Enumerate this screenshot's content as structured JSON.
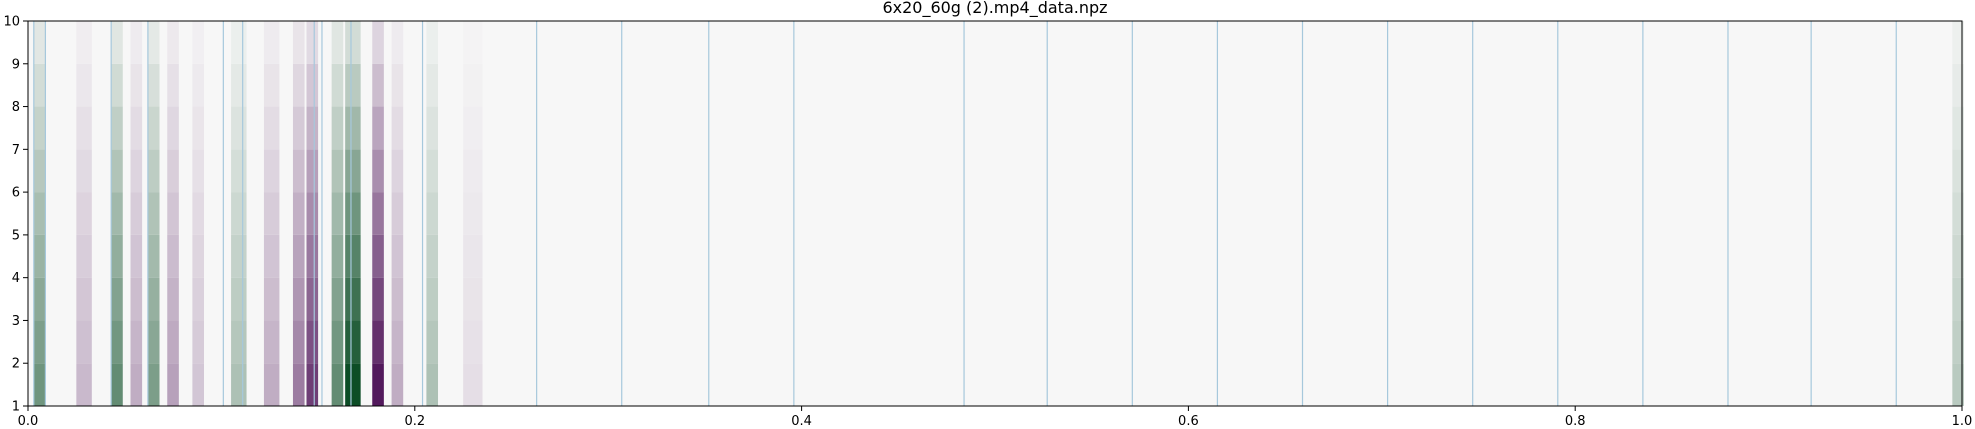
{
  "chart_data": {
    "type": "heatmap",
    "title": "6x20_60g (2).mp4_data.npz",
    "xlabel": "",
    "ylabel": "",
    "xlim": [
      0.0,
      1.0
    ],
    "ylim": [
      1,
      10
    ],
    "x_ticks": [
      0.0,
      0.2,
      0.4,
      0.6,
      0.8,
      1.0
    ],
    "x_tick_labels": [
      "0.0",
      "0.2",
      "0.4",
      "0.6",
      "0.8",
      "1.0"
    ],
    "y_ticks": [
      1,
      2,
      3,
      4,
      5,
      6,
      7,
      8,
      9,
      10
    ],
    "y_tick_labels": [
      "1",
      "2",
      "3",
      "4",
      "5",
      "6",
      "7",
      "8",
      "9",
      "10"
    ],
    "rows": [
      1,
      2,
      3,
      4,
      5,
      6,
      7,
      8,
      9
    ],
    "colormap": "PRGn",
    "color_low": "#40004b",
    "color_mid": "#f7f7f7",
    "color_high": "#00441b",
    "value_range": [
      -1,
      1
    ],
    "bands": [
      {
        "x": 0.003,
        "width": 0.006,
        "value": 0.55
      },
      {
        "x": 0.025,
        "width": 0.008,
        "value": -0.25
      },
      {
        "x": 0.043,
        "width": 0.006,
        "value": 0.6
      },
      {
        "x": 0.053,
        "width": 0.006,
        "value": -0.3
      },
      {
        "x": 0.062,
        "width": 0.006,
        "value": 0.5
      },
      {
        "x": 0.072,
        "width": 0.006,
        "value": -0.35
      },
      {
        "x": 0.085,
        "width": 0.006,
        "value": -0.2
      },
      {
        "x": 0.105,
        "width": 0.008,
        "value": 0.3
      },
      {
        "x": 0.122,
        "width": 0.008,
        "value": -0.3
      },
      {
        "x": 0.137,
        "width": 0.006,
        "value": -0.5
      },
      {
        "x": 0.144,
        "width": 0.006,
        "value": -0.75
      },
      {
        "x": 0.157,
        "width": 0.006,
        "value": 0.6
      },
      {
        "x": 0.164,
        "width": 0.008,
        "value": 0.95
      },
      {
        "x": 0.178,
        "width": 0.006,
        "value": -0.9
      },
      {
        "x": 0.188,
        "width": 0.006,
        "value": -0.3
      },
      {
        "x": 0.206,
        "width": 0.006,
        "value": 0.3
      },
      {
        "x": 0.225,
        "width": 0.01,
        "value": -0.1
      },
      {
        "x": 0.995,
        "width": 0.006,
        "value": 0.25
      }
    ],
    "vertical_lines": [
      0.003,
      0.009,
      0.043,
      0.062,
      0.101,
      0.111,
      0.148,
      0.152,
      0.167,
      0.204,
      0.263,
      0.307,
      0.352,
      0.396,
      0.484,
      0.527,
      0.571,
      0.615,
      0.659,
      0.703,
      0.747,
      0.791,
      0.835,
      0.879,
      0.922,
      0.966
    ],
    "line_color": "#a6c8dc"
  }
}
